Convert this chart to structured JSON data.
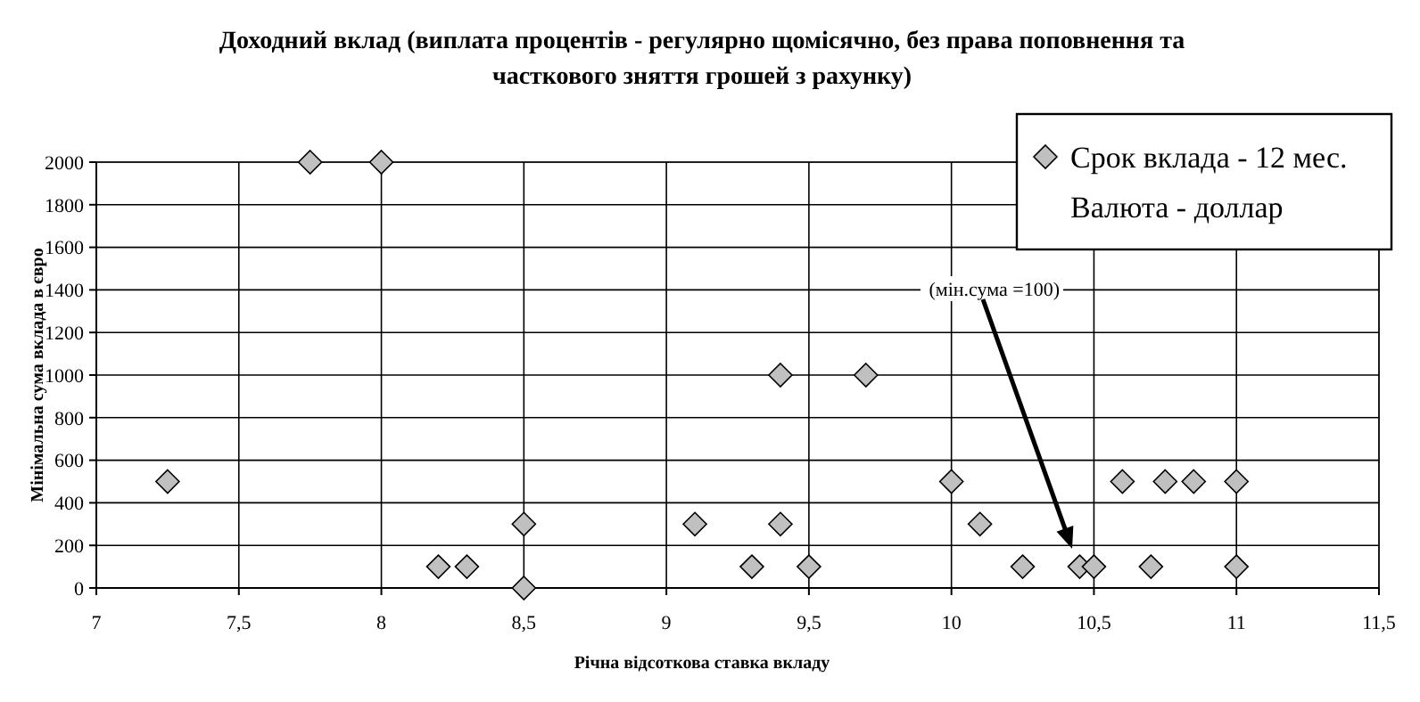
{
  "chart_data": {
    "type": "scatter",
    "title": "Доходний вклад (виплата процентів - регулярно щомісячно, без права поповнення та часткового зняття грошей з рахунку)",
    "xlabel": "Річна відсоткова ставка вкладу",
    "ylabel": "Мінімальна сума вклада в євро",
    "xlim": [
      7,
      11.5
    ],
    "xticks": [
      7,
      {
        "value": 7.5,
        "label": "7,5"
      },
      8,
      {
        "value": 8.5,
        "label": "8,5"
      },
      9,
      {
        "value": 9.5,
        "label": "9,5"
      },
      10,
      {
        "value": 10.5,
        "label": "10,5"
      },
      11,
      {
        "value": 11.5,
        "label": "11,5"
      }
    ],
    "ylim": [
      0,
      2000
    ],
    "yticks": [
      0,
      200,
      400,
      600,
      800,
      1000,
      1200,
      1400,
      1600,
      1800,
      2000
    ],
    "grid": true,
    "legend": "top right",
    "marker": "diamond",
    "series": [
      {
        "name": "Срок вклада - 12 мес.",
        "color": "#c0c0c0",
        "x": [
          7.25,
          7.75,
          8,
          8.2,
          8.3,
          8.5,
          8.5,
          9.1,
          9.3,
          9.4,
          9.4,
          9.5,
          9.7,
          10,
          10.1,
          10.25,
          10.45,
          10.5,
          10.6,
          10.7,
          10.75,
          10.85,
          11,
          11
        ],
        "values": [
          500,
          2000,
          2000,
          100,
          100,
          300,
          0,
          300,
          100,
          1000,
          300,
          100,
          1000,
          500,
          300,
          100,
          100,
          100,
          500,
          100,
          500,
          500,
          500,
          100
        ]
      }
    ],
    "annotations": [
      "(мін.сума =100)",
      "Валюта - доллар"
    ]
  }
}
